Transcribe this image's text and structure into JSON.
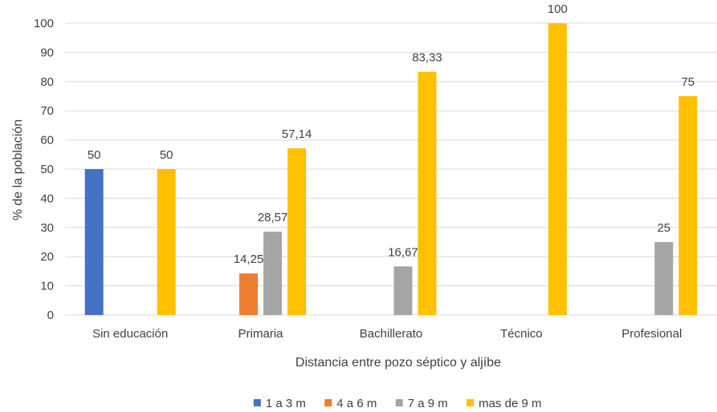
{
  "chart_data": {
    "type": "bar",
    "xlabel": "Distancia entre pozo séptico y aljíbe",
    "ylabel": "% de la población",
    "ylim": [
      0,
      100
    ],
    "yticks": [
      0,
      10,
      20,
      30,
      40,
      50,
      60,
      70,
      80,
      90,
      100
    ],
    "grid": true,
    "legend_position": "bottom",
    "categories": [
      "Sin educación",
      "Primaria",
      "Bachillerato",
      "Técnico",
      "Profesional"
    ],
    "series": [
      {
        "name": "1 a 3 m",
        "color": "#4472c4",
        "values": [
          50,
          null,
          null,
          null,
          null
        ],
        "labels": [
          "50",
          "",
          "",
          "",
          ""
        ]
      },
      {
        "name": "4 a 6 m",
        "color": "#ed7d31",
        "values": [
          null,
          14.25,
          null,
          null,
          null
        ],
        "labels": [
          "",
          "14,25",
          "",
          "",
          ""
        ]
      },
      {
        "name": "7 a 9 m",
        "color": "#a5a5a5",
        "values": [
          null,
          28.57,
          16.67,
          null,
          25
        ],
        "labels": [
          "",
          "28,57",
          "16,67",
          "",
          "25"
        ]
      },
      {
        "name": "mas de 9 m",
        "color": "#ffc000",
        "values": [
          50,
          57.14,
          83.33,
          100,
          75
        ],
        "labels": [
          "50",
          "57,14",
          "83,33",
          "100",
          "75"
        ]
      }
    ]
  }
}
